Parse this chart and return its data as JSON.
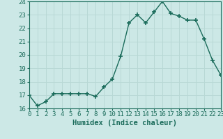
{
  "x": [
    0,
    1,
    2,
    3,
    4,
    5,
    6,
    7,
    8,
    9,
    10,
    11,
    12,
    13,
    14,
    15,
    16,
    17,
    18,
    19,
    20,
    21,
    22,
    23
  ],
  "y": [
    17.0,
    16.2,
    16.5,
    17.1,
    17.1,
    17.1,
    17.1,
    17.1,
    16.9,
    17.6,
    18.2,
    19.9,
    22.4,
    23.0,
    22.4,
    23.2,
    24.0,
    23.1,
    22.9,
    22.6,
    22.6,
    21.2,
    19.6,
    18.5
  ],
  "xlabel": "Humidex (Indice chaleur)",
  "ylim": [
    16,
    24
  ],
  "xlim": [
    0,
    23
  ],
  "yticks": [
    16,
    17,
    18,
    19,
    20,
    21,
    22,
    23,
    24
  ],
  "xticks": [
    0,
    1,
    2,
    3,
    4,
    5,
    6,
    7,
    8,
    9,
    10,
    11,
    12,
    13,
    14,
    15,
    16,
    17,
    18,
    19,
    20,
    21,
    22,
    23
  ],
  "line_color": "#1a6b5a",
  "marker_color": "#1a6b5a",
  "bg_color": "#cce8e6",
  "grid_color": "#b8d8d5",
  "axes_color": "#1a6b5a",
  "tick_color": "#1a6b5a",
  "label_color": "#1a6b5a",
  "xlabel_fontsize": 7.5,
  "tick_fontsize": 6.5,
  "line_width": 1.0,
  "marker_size": 4
}
